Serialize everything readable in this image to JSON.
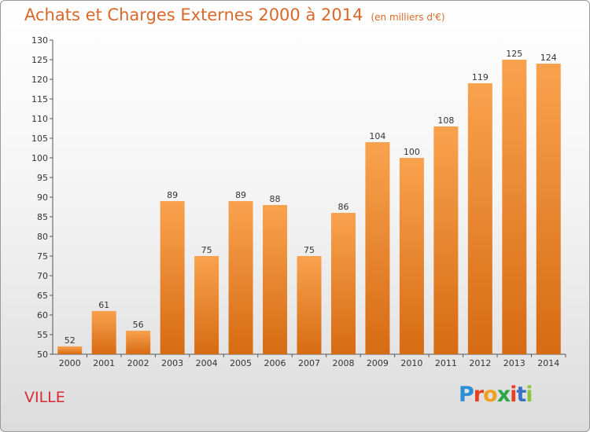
{
  "title": "Achats et Charges Externes 2000 à 2014",
  "unit": "(en milliers d'€)",
  "location": "VILLE",
  "logo": {
    "text": "Proxiti",
    "letter_colors": [
      "#2a8fd6",
      "#e5401f",
      "#f0a020",
      "#2aa748",
      "#e5401f",
      "#3a6fc4",
      "#8bc53f"
    ]
  },
  "colors": {
    "bar_light": "#f9a24e",
    "bar_dark": "#d66b12",
    "title": "#d9682a",
    "location": "#d62b35"
  },
  "chart_data": {
    "type": "bar",
    "title": "Achats et Charges Externes 2000 à 2014",
    "subtitle": "(en milliers d'€)",
    "categories": [
      "2000",
      "2001",
      "2002",
      "2003",
      "2004",
      "2005",
      "2006",
      "2007",
      "2008",
      "2009",
      "2010",
      "2011",
      "2012",
      "2013",
      "2014"
    ],
    "values": [
      52,
      61,
      56,
      89,
      75,
      89,
      88,
      75,
      86,
      104,
      100,
      108,
      119,
      125,
      124
    ],
    "data_labels": [
      "52",
      "61",
      "56",
      "89",
      "75",
      "89",
      "88",
      "75",
      "86",
      "104",
      "100",
      "108",
      "119",
      "125",
      "124"
    ],
    "ylim": [
      50,
      130
    ],
    "yticks": [
      50,
      55,
      60,
      65,
      70,
      75,
      80,
      85,
      90,
      95,
      100,
      105,
      110,
      115,
      120,
      125,
      130
    ],
    "grid": false,
    "legend": "none"
  }
}
